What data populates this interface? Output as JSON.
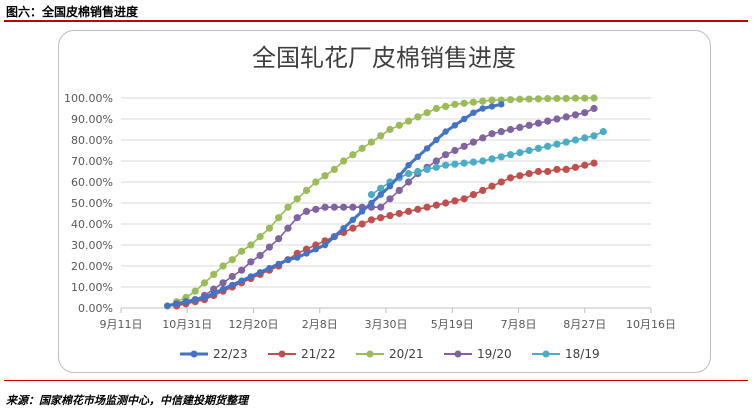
{
  "figure_label": "图六：全国皮棉销售进度",
  "source_note": "来源：国家棉花市场监测中心，中信建投期货整理",
  "chart_data": {
    "type": "line",
    "title": "全国轧花厂皮棉销售进度",
    "x_tick_labels": [
      "9月11日",
      "10月31日",
      "12月20日",
      "2月8日",
      "3月30日",
      "5月19日",
      "7月8日",
      "8月27日",
      "10月16日"
    ],
    "xlim_days_from_sep11": [
      0,
      400
    ],
    "y_tick_labels": [
      "0.00%",
      "10.00%",
      "20.00%",
      "30.00%",
      "40.00%",
      "50.00%",
      "60.00%",
      "70.00%",
      "80.00%",
      "90.00%",
      "100.00%"
    ],
    "ylim": [
      0,
      100
    ],
    "legend_position": "bottom",
    "series": [
      {
        "name": "22/23",
        "color": "#4472c4",
        "marker": "circle",
        "thick": true,
        "x": [
          35,
          42,
          49,
          56,
          63,
          70,
          77,
          84,
          91,
          98,
          105,
          112,
          119,
          126,
          133,
          140,
          147,
          154,
          161,
          168,
          175,
          182,
          189,
          196,
          203,
          210,
          217,
          224,
          231,
          238,
          245,
          252,
          259,
          266,
          273,
          280,
          287
        ],
        "y": [
          1,
          2,
          3,
          4,
          5,
          7,
          9,
          11,
          13,
          15,
          17,
          19,
          21,
          23,
          24,
          26,
          28,
          30,
          34,
          38,
          42,
          46,
          50,
          54,
          58,
          63,
          68,
          72,
          76,
          80,
          84,
          87,
          90,
          93,
          95,
          96,
          97
        ]
      },
      {
        "name": "21/22",
        "color": "#c0504d",
        "marker": "circle",
        "thick": false,
        "x": [
          42,
          49,
          56,
          63,
          70,
          77,
          84,
          91,
          98,
          105,
          112,
          119,
          126,
          133,
          140,
          147,
          154,
          161,
          168,
          175,
          182,
          189,
          196,
          203,
          210,
          217,
          224,
          231,
          238,
          245,
          252,
          259,
          266,
          273,
          280,
          287,
          294,
          301,
          308,
          315,
          322,
          329,
          336,
          343,
          350,
          357
        ],
        "y": [
          1,
          2,
          3,
          4,
          6,
          8,
          10,
          12,
          14,
          16,
          18,
          20,
          23,
          26,
          28,
          30,
          32,
          34,
          36,
          38,
          40,
          42,
          43,
          44,
          45,
          46,
          47,
          48,
          49,
          50,
          51,
          52,
          54,
          56,
          58,
          60,
          62,
          63,
          64,
          65,
          65,
          66,
          66,
          67,
          68,
          69
        ]
      },
      {
        "name": "20/21",
        "color": "#9bbb59",
        "marker": "circle",
        "thick": false,
        "x": [
          35,
          42,
          49,
          56,
          63,
          70,
          77,
          84,
          91,
          98,
          105,
          112,
          119,
          126,
          133,
          140,
          147,
          154,
          161,
          168,
          175,
          182,
          189,
          196,
          203,
          210,
          217,
          224,
          231,
          238,
          245,
          252,
          259,
          266,
          273,
          280,
          287,
          294,
          301,
          308,
          315,
          322,
          329,
          336,
          343,
          350,
          357
        ],
        "y": [
          1,
          3,
          5,
          8,
          12,
          16,
          20,
          23,
          27,
          30,
          34,
          38,
          43,
          48,
          52,
          56,
          60,
          63,
          66,
          70,
          73,
          76,
          79,
          82,
          85,
          87,
          89,
          91,
          93,
          95,
          96,
          97,
          97.5,
          98,
          98.5,
          99,
          99,
          99.2,
          99.4,
          99.5,
          99.6,
          99.7,
          99.8,
          99.8,
          99.9,
          99.9,
          100
        ]
      },
      {
        "name": "19/20",
        "color": "#8064a2",
        "marker": "circle",
        "thick": false,
        "x": [
          42,
          49,
          56,
          63,
          70,
          77,
          84,
          91,
          98,
          105,
          112,
          119,
          126,
          133,
          140,
          147,
          154,
          161,
          168,
          175,
          182,
          189,
          196,
          203,
          210,
          217,
          224,
          231,
          238,
          245,
          252,
          259,
          266,
          273,
          280,
          287,
          294,
          301,
          308,
          315,
          322,
          329,
          336,
          343,
          350,
          357
        ],
        "y": [
          2,
          3,
          4,
          6,
          9,
          12,
          15,
          18,
          22,
          25,
          29,
          33,
          38,
          43,
          46,
          47,
          48,
          48,
          48,
          48,
          48,
          48,
          48,
          52,
          56,
          60,
          64,
          67,
          70,
          73,
          75,
          77,
          79,
          81,
          83,
          84,
          85,
          86,
          87,
          88,
          89,
          90,
          91,
          92,
          93,
          95
        ]
      },
      {
        "name": "18/19",
        "color": "#4bacc6",
        "marker": "circle",
        "thick": false,
        "x": [
          189,
          196,
          203,
          210,
          217,
          224,
          231,
          238,
          245,
          252,
          259,
          266,
          273,
          280,
          287,
          294,
          301,
          308,
          315,
          322,
          329,
          336,
          343,
          350,
          357,
          364
        ],
        "y": [
          54,
          57,
          60,
          62,
          64,
          65,
          66,
          67,
          68,
          68.5,
          69,
          69.5,
          70,
          71,
          72,
          73,
          74,
          75,
          76,
          77,
          78,
          79,
          80,
          81,
          82,
          84
        ]
      }
    ]
  }
}
